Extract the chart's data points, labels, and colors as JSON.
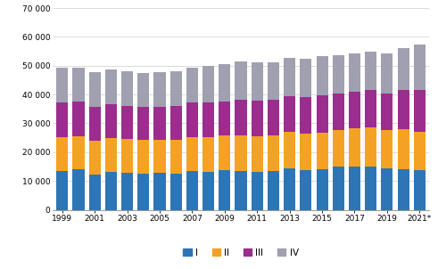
{
  "years": [
    1999,
    2000,
    2001,
    2002,
    2003,
    2004,
    2005,
    2006,
    2007,
    2008,
    2009,
    2010,
    2011,
    2012,
    2013,
    2014,
    2015,
    2016,
    2017,
    2018,
    2019,
    2020,
    2021
  ],
  "Q1": [
    13600,
    14000,
    12300,
    13200,
    12800,
    12500,
    12700,
    12500,
    13500,
    13300,
    13800,
    13600,
    13100,
    13500,
    14500,
    13800,
    14100,
    15000,
    14900,
    15000,
    14400,
    14000,
    13900
  ],
  "Q2": [
    11700,
    11500,
    11700,
    11600,
    11700,
    11700,
    11700,
    11800,
    11800,
    12000,
    12000,
    12200,
    12400,
    12300,
    12500,
    12700,
    12700,
    12600,
    13400,
    13500,
    13400,
    13900,
    13300
  ],
  "Q3": [
    12100,
    12100,
    11600,
    11900,
    11600,
    11500,
    11400,
    11600,
    11900,
    12000,
    11800,
    12300,
    12500,
    12300,
    12500,
    12600,
    13000,
    12600,
    12800,
    13000,
    12700,
    13600,
    14300
  ],
  "Q4": [
    12000,
    11800,
    12100,
    12000,
    12100,
    11900,
    12100,
    12100,
    12000,
    12500,
    13100,
    13400,
    13200,
    13000,
    13200,
    13300,
    13600,
    13500,
    13300,
    13500,
    13900,
    14500,
    16000
  ],
  "colors": [
    "#2E75B6",
    "#F4A223",
    "#9B2D8E",
    "#A0A0B0"
  ],
  "labels": [
    "I",
    "II",
    "III",
    "IV"
  ],
  "xtick_labels": [
    "1999",
    "2001",
    "2003",
    "2005",
    "2007",
    "2009",
    "2011",
    "2013",
    "2015",
    "2017",
    "2019",
    "2021*"
  ],
  "ylim": [
    0,
    70000
  ],
  "yticks": [
    0,
    10000,
    20000,
    30000,
    40000,
    50000,
    60000,
    70000
  ],
  "ytick_labels": [
    "0",
    "10 000",
    "20 000",
    "30 000",
    "40 000",
    "50 000",
    "60 000",
    "70 000"
  ]
}
